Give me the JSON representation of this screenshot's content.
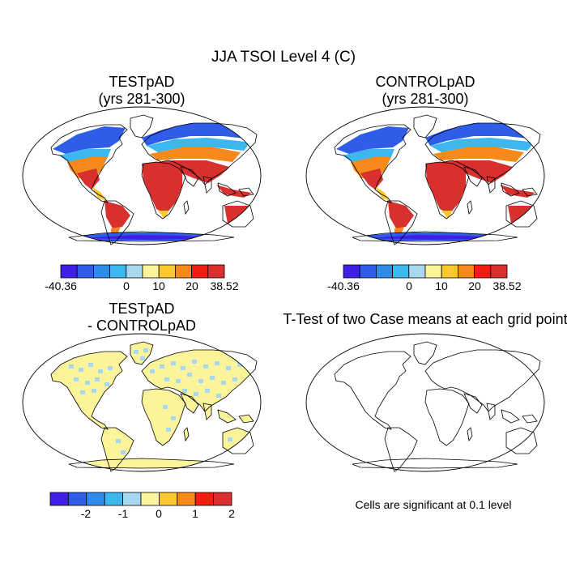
{
  "title": "JJA TSOI Level 4 (C)",
  "panels": [
    {
      "title_line1": "TESTpAD",
      "title_line2": "(yrs 281-300)"
    },
    {
      "title_line1": "CONTROLpAD",
      "title_line2": "(yrs 281-300)"
    },
    {
      "title_line1": "TESTpAD",
      "title_line2": "- CONTROLpAD"
    },
    {
      "title_line1": "T-Test of two Case means at each grid point",
      "title_line2": ""
    }
  ],
  "note": "Cells are significant at 0.1 level",
  "colorbar_abs": {
    "colors": [
      "#3f1ee6",
      "#2f5de8",
      "#2e8ce8",
      "#3cb8ee",
      "#a8d8ef",
      "#fbf49a",
      "#fbc92d",
      "#f6891c",
      "#f21d11",
      "#d7302e"
    ],
    "labels": [
      "-40.36",
      "0",
      "10",
      "20",
      "38.52"
    ]
  },
  "colorbar_diff": {
    "colors": [
      "#3f1ee6",
      "#2f5de8",
      "#2e8ce8",
      "#3cb8ee",
      "#a8d8ef",
      "#fbf49a",
      "#fbc92d",
      "#f6891c",
      "#f21d11",
      "#d7302e"
    ],
    "labels": [
      "-2",
      "-1",
      "0",
      "1",
      "2"
    ]
  },
  "colors": {
    "hot": "#d7302e",
    "warm": "#f6891c",
    "mild": "#fbc92d",
    "cool": "#3cb8ee",
    "cold": "#2f5de8",
    "ice": "#3f1ee6",
    "diff_pos": "#fbf49a",
    "diff_neg": "#a8d8ef"
  }
}
